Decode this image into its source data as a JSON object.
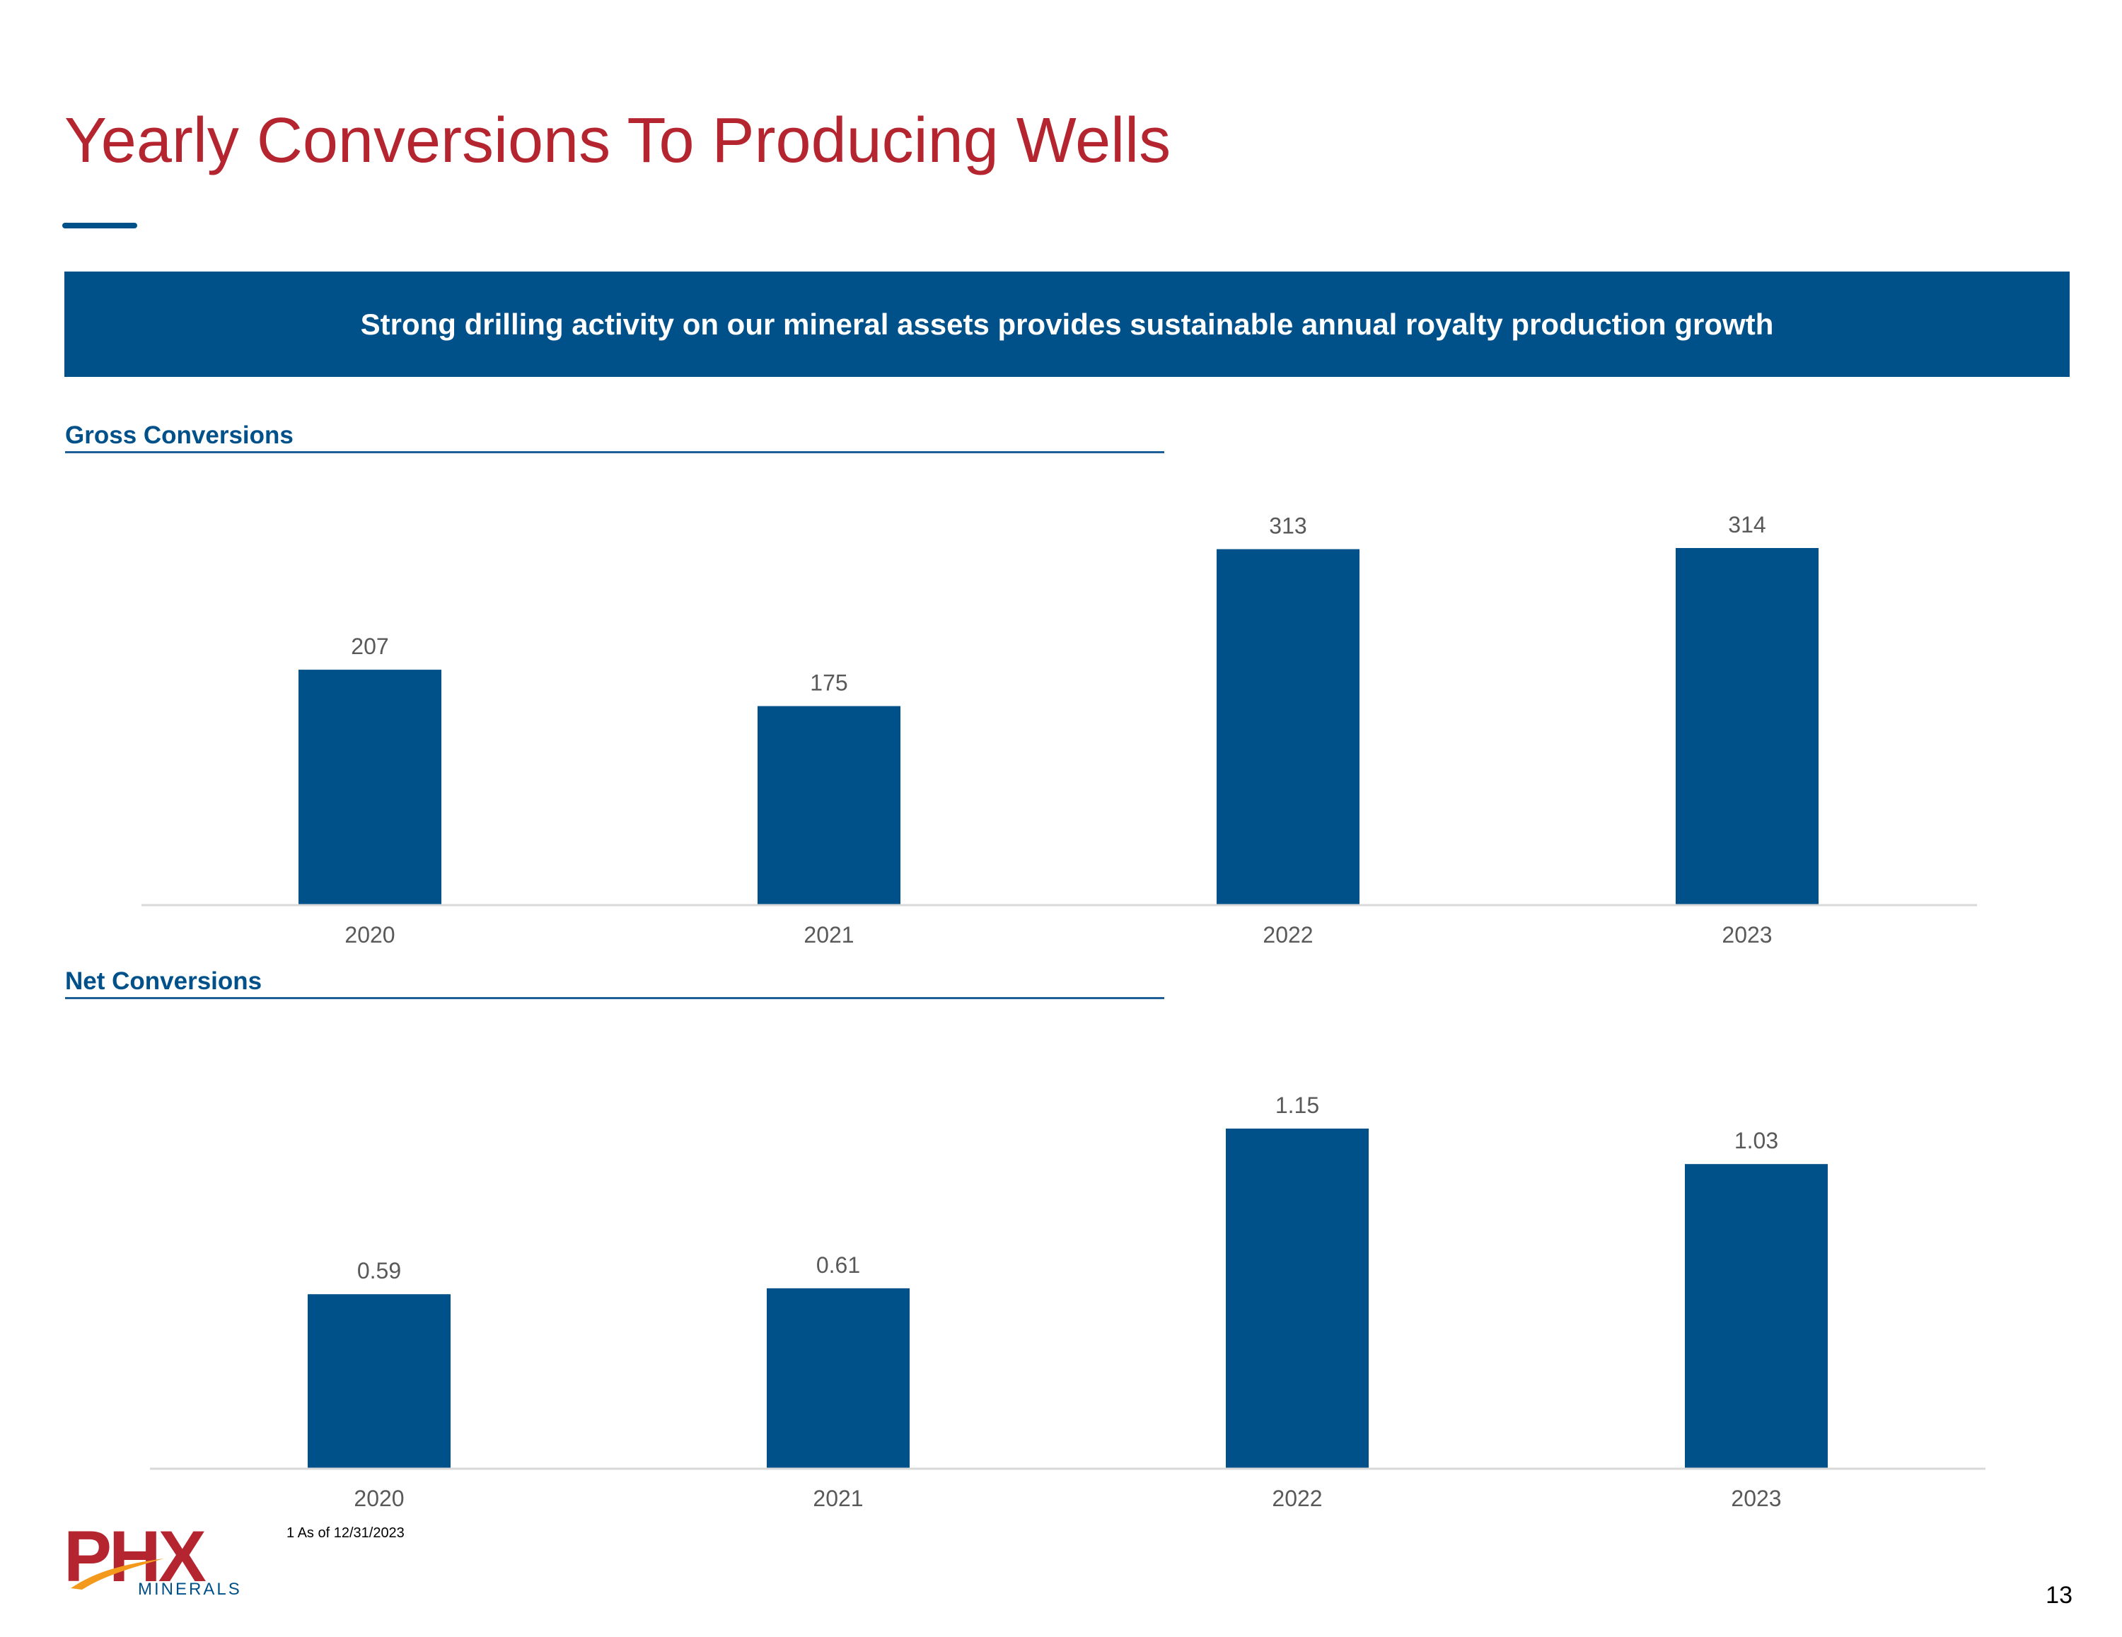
{
  "slide": {
    "title": "Yearly Conversions To Producing Wells",
    "banner": "Strong drilling activity on our mineral assets provides sustainable annual royalty production growth",
    "page_number": "13"
  },
  "sections": {
    "gross_heading": "Gross Conversions",
    "net_heading": "Net Conversions"
  },
  "footer": {
    "footnote": "1 As of 12/31/2023",
    "logo_text": "PHX",
    "logo_subtext": "MINERALS"
  },
  "colors": {
    "title": "#b5252f",
    "accent": "#005089",
    "bar": "#005089",
    "axis": "#d9d9d9",
    "label": "#595959"
  },
  "chart_data": [
    {
      "type": "bar",
      "title": "Gross Conversions",
      "categories": [
        "2020",
        "2021",
        "2022",
        "2023"
      ],
      "values": [
        207,
        175,
        313,
        314
      ],
      "value_labels": [
        "207",
        "175",
        "313",
        "314"
      ],
      "xlabel": "",
      "ylabel": "",
      "ylim": [
        0,
        314
      ],
      "grid": false,
      "legend": "none"
    },
    {
      "type": "bar",
      "title": "Net Conversions",
      "categories": [
        "2020",
        "2021",
        "2022",
        "2023"
      ],
      "values": [
        0.59,
        0.61,
        1.15,
        1.03
      ],
      "value_labels": [
        "0.59",
        "0.61",
        "1.15",
        "1.03"
      ],
      "xlabel": "",
      "ylabel": "",
      "ylim": [
        0,
        1.15
      ],
      "grid": false,
      "legend": "none"
    }
  ]
}
